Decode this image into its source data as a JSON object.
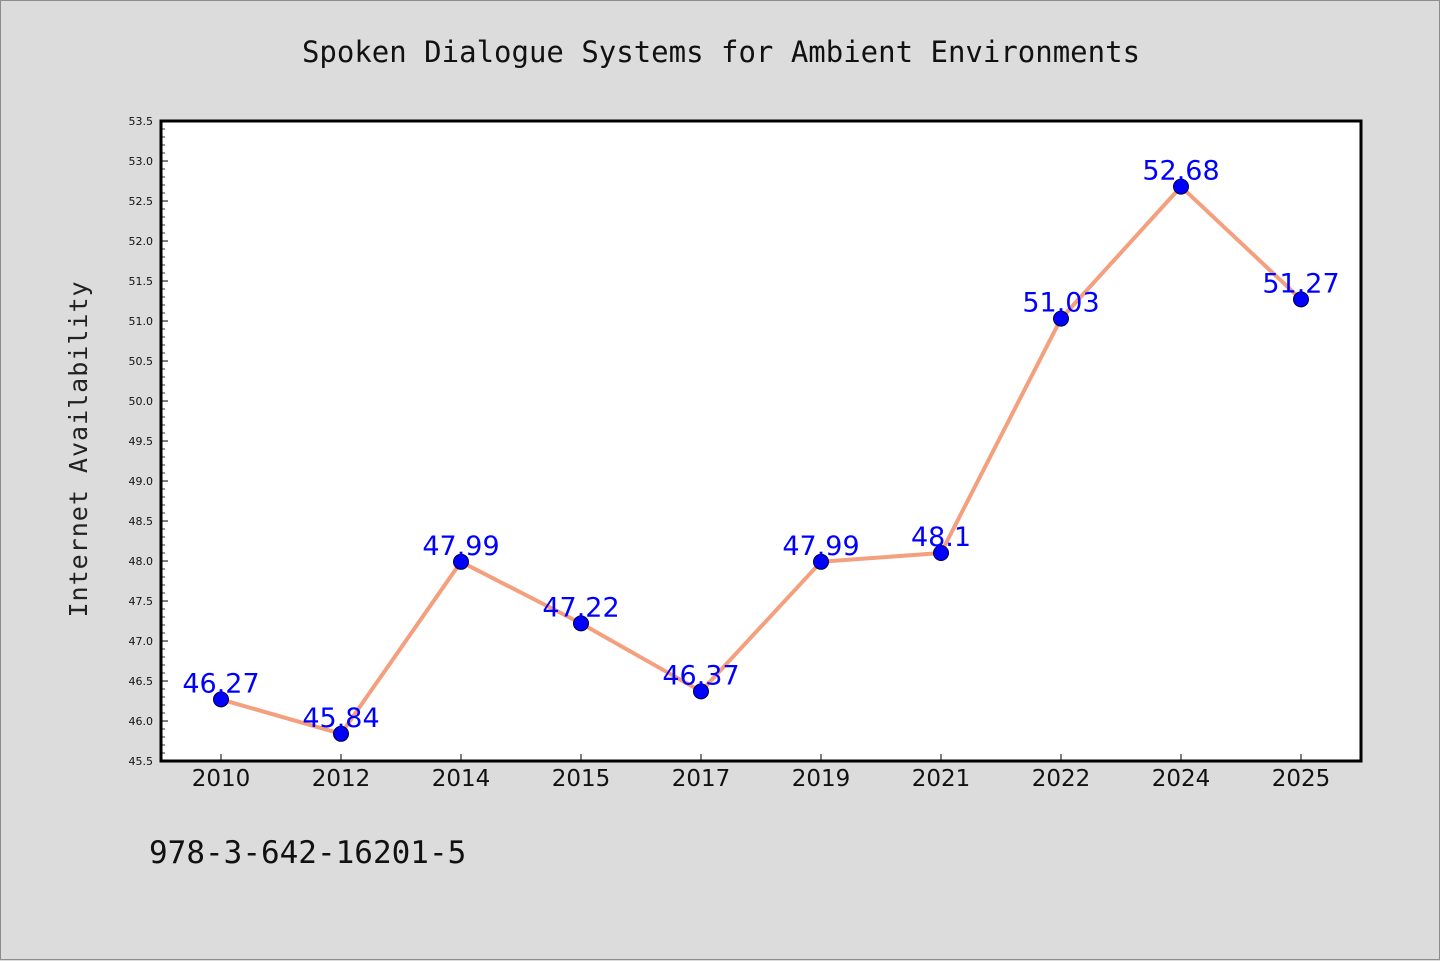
{
  "chart_data": {
    "type": "line",
    "title": "Spoken Dialogue Systems for Ambient Environments",
    "xlabel": "",
    "ylabel": "Internet Availability",
    "categories": [
      "2010",
      "2012",
      "2014",
      "2015",
      "2017",
      "2019",
      "2021",
      "2022",
      "2024",
      "2025"
    ],
    "series": [
      {
        "values": [
          46.27,
          45.84,
          47.99,
          47.22,
          46.37,
          47.99,
          48.1,
          51.03,
          52.68,
          51.27
        ],
        "data_labels": [
          "46.27",
          "45.84",
          "47.99",
          "47.22",
          "46.37",
          "47.99",
          "48.1",
          "51.03",
          "52.68",
          "51.27"
        ],
        "line_color": "#f4a07e",
        "marker_color": "#0000ff"
      }
    ],
    "ylim": [
      45.5,
      53.5
    ],
    "yticks": [
      "45.5",
      "46.0",
      "46.5",
      "47.0",
      "47.5",
      "48.0",
      "48.5",
      "49.0",
      "49.5",
      "50.0",
      "50.5",
      "51.0",
      "51.5",
      "52.0",
      "52.5",
      "53.0",
      "53.5"
    ],
    "grid": false,
    "legend": "none"
  },
  "footer": {
    "note": "978-3-642-16201-5"
  }
}
